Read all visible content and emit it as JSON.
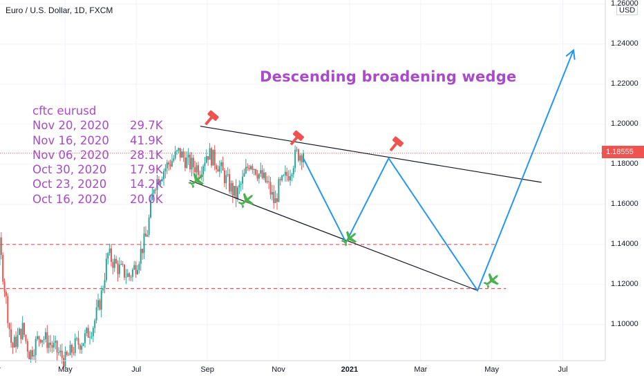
{
  "header": {
    "title": "Euro / U.S. Dollar, 1D, FXCM"
  },
  "annotation": {
    "title": "Descending broadening wedge"
  },
  "cftc": {
    "heading": "cftc eurusd",
    "rows": [
      {
        "date": "Nov 20, 2020",
        "value": "29.7K"
      },
      {
        "date": "Nov 16, 2020",
        "value": "41.9K"
      },
      {
        "date": "Nov 06, 2020",
        "value": "28.1K"
      },
      {
        "date": "Oct 30, 2020",
        "value": "17.9K"
      },
      {
        "date": "Oct 23, 2020",
        "value": "14.2K"
      },
      {
        "date": "Oct 16, 2020",
        "value": "20.0K"
      }
    ]
  },
  "price_axis": {
    "currency": "USD",
    "current_price": "1.18555"
  },
  "chart_data": {
    "type": "candlestick",
    "symbol": "Euro / U.S. Dollar",
    "interval": "1D",
    "source": "FXCM",
    "ylim": [
      1.082,
      1.262
    ],
    "y_ticks": [
      "1.10000",
      "1.12000",
      "1.14000",
      "1.16000",
      "1.18000",
      "1.20000",
      "1.22000",
      "1.24000",
      "1.26000"
    ],
    "x_ticks": [
      {
        "label": "Mar",
        "month": 3
      },
      {
        "label": "May",
        "month": 5
      },
      {
        "label": "Jul",
        "month": 7
      },
      {
        "label": "Sep",
        "month": 9
      },
      {
        "label": "Nov",
        "month": 11
      },
      {
        "label": "2021",
        "month": 13,
        "bold": true
      },
      {
        "label": "Mar",
        "month": 15
      },
      {
        "label": "May",
        "month": 17
      },
      {
        "label": "Jul",
        "month": 19
      }
    ],
    "price_keypoints": [
      [
        2.0,
        1.108
      ],
      [
        2.3,
        1.096
      ],
      [
        2.7,
        1.092
      ],
      [
        3.0,
        1.11
      ],
      [
        3.15,
        1.14
      ],
      [
        3.3,
        1.118
      ],
      [
        3.5,
        1.088
      ],
      [
        3.8,
        1.098
      ],
      [
        4.0,
        1.085
      ],
      [
        4.3,
        1.095
      ],
      [
        4.6,
        1.09
      ],
      [
        5.0,
        1.082
      ],
      [
        5.3,
        1.09
      ],
      [
        5.5,
        1.092
      ],
      [
        5.8,
        1.1
      ],
      [
        6.0,
        1.113
      ],
      [
        6.2,
        1.135
      ],
      [
        6.5,
        1.128
      ],
      [
        6.8,
        1.124
      ],
      [
        7.0,
        1.13
      ],
      [
        7.3,
        1.145
      ],
      [
        7.5,
        1.17
      ],
      [
        7.8,
        1.178
      ],
      [
        8.0,
        1.182
      ],
      [
        8.2,
        1.186
      ],
      [
        8.5,
        1.18
      ],
      [
        8.8,
        1.178
      ],
      [
        9.0,
        1.186
      ],
      [
        9.3,
        1.18
      ],
      [
        9.6,
        1.17
      ],
      [
        9.8,
        1.164
      ],
      [
        10.0,
        1.172
      ],
      [
        10.2,
        1.182
      ],
      [
        10.5,
        1.174
      ],
      [
        10.7,
        1.17
      ],
      [
        10.9,
        1.16
      ],
      [
        11.0,
        1.168
      ],
      [
        11.3,
        1.176
      ],
      [
        11.5,
        1.185
      ],
      [
        11.7,
        1.1856
      ]
    ],
    "current_price": 1.18555,
    "wedge": {
      "upper": [
        [
          8.8,
          1.199
        ],
        [
          18.4,
          1.171
        ]
      ],
      "lower": [
        [
          8.5,
          1.172
        ],
        [
          16.6,
          1.117
        ]
      ]
    },
    "support_levels": [
      1.14,
      1.118
    ],
    "projection_path": [
      [
        11.7,
        1.183
      ],
      [
        12.9,
        1.141
      ],
      [
        14.1,
        1.183
      ],
      [
        16.6,
        1.117
      ],
      [
        19.3,
        1.237
      ]
    ],
    "sell_markers": [
      [
        9.1,
        1.203
      ],
      [
        11.5,
        1.193
      ],
      [
        14.3,
        1.19
      ]
    ],
    "buy_markers": [
      [
        8.7,
        1.172
      ],
      [
        10.1,
        1.162
      ],
      [
        13.0,
        1.143
      ],
      [
        17.0,
        1.122
      ]
    ],
    "colors": {
      "up": "#26a69a",
      "down": "#ef5350",
      "projection": "#2196f3",
      "wedge_lines": "#131722",
      "support": "#ef5350",
      "sell_marker": "#ef5350",
      "buy_marker": "#4caf50",
      "annotation": "#a94ac8"
    }
  }
}
